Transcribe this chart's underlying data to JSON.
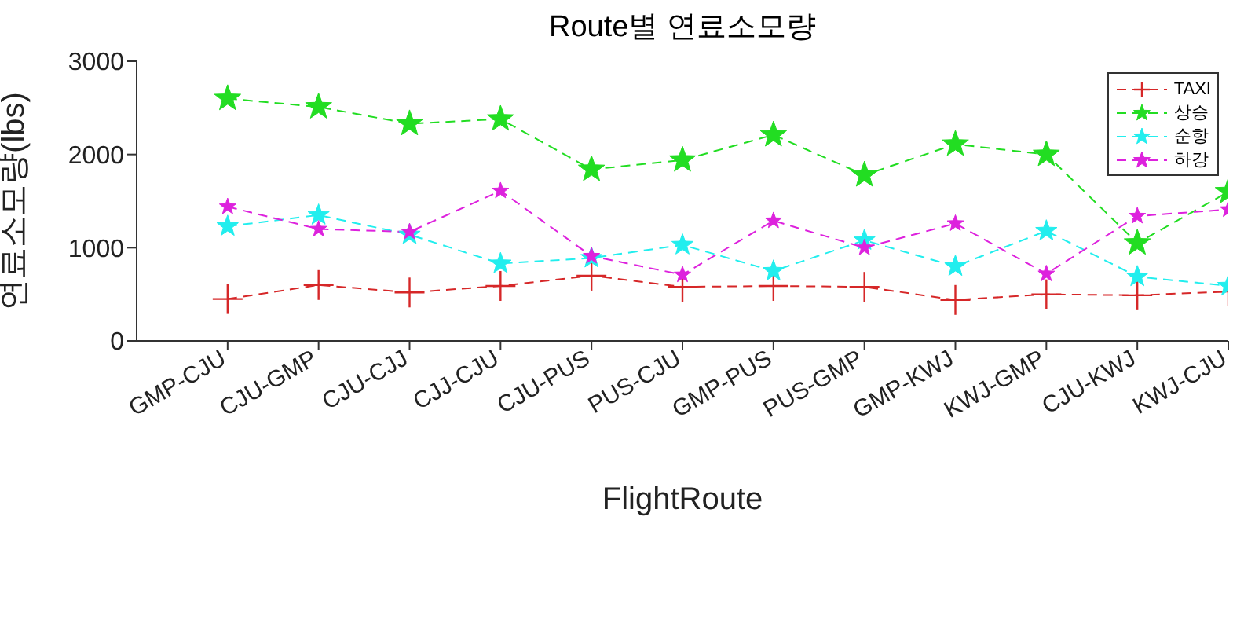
{
  "chart_data": {
    "type": "line",
    "title": "Route별 연료소모량",
    "xlabel": "FlightRoute",
    "ylabel": "연료소모량(lbs)",
    "categories": [
      "GMP-CJU",
      "CJU-GMP",
      "CJU-CJJ",
      "CJJ-CJU",
      "CJU-PUS",
      "PUS-CJU",
      "GMP-PUS",
      "PUS-GMP",
      "GMP-KWJ",
      "KWJ-GMP",
      "CJU-KWJ",
      "KWJ-CJU"
    ],
    "series": [
      {
        "name": "TAXI",
        "color": "#d62728",
        "marker": "cross",
        "values": [
          450,
          600,
          520,
          590,
          700,
          580,
          590,
          580,
          440,
          500,
          490,
          530
        ]
      },
      {
        "name": "상승",
        "color": "#22dd22",
        "marker": "star",
        "values": [
          2600,
          2510,
          2330,
          2380,
          1840,
          1940,
          2210,
          1780,
          2110,
          2000,
          1050,
          1600
        ]
      },
      {
        "name": "순항",
        "color": "#22eeee",
        "marker": "star",
        "values": [
          1230,
          1350,
          1140,
          830,
          890,
          1030,
          750,
          1080,
          800,
          1180,
          690,
          590
        ]
      },
      {
        "name": "하강",
        "color": "#dd22dd",
        "marker": "star",
        "values": [
          1440,
          1200,
          1170,
          1610,
          910,
          710,
          1290,
          1000,
          1260,
          720,
          1340,
          1410
        ]
      }
    ],
    "ylim": [
      0,
      3000
    ],
    "yticks": [
      0,
      1000,
      2000,
      3000
    ],
    "grid": false,
    "legend": "top right",
    "line_style": "dashed"
  }
}
